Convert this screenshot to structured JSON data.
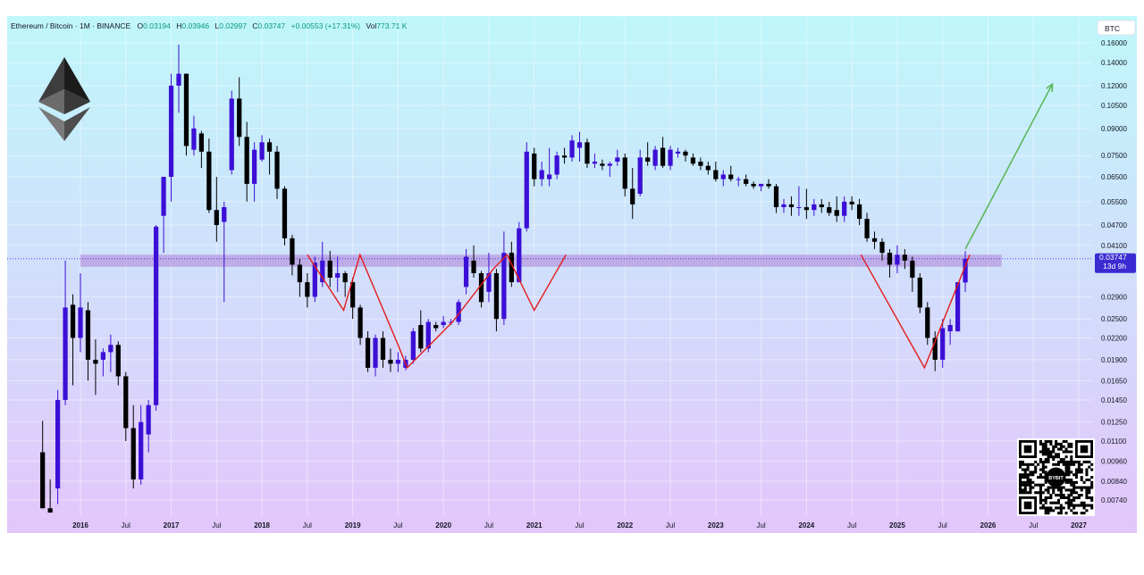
{
  "header": {
    "symbol": "Ethereum / Bitcoin · 1M · BINANCE",
    "open_label": "O",
    "open": "0.03194",
    "high_label": "H",
    "high": "0.03946",
    "low_label": "L",
    "low": "0.02997",
    "close_label": "C",
    "close": "0.03747",
    "change": "+0.00553 (+17.31%)",
    "vol_label": "Vol",
    "vol": "773.71 K"
  },
  "currency_label": "BTC",
  "price_badge": {
    "value": "0.03747",
    "countdown": "13d 9h"
  },
  "colors": {
    "bull": "#3c0fd6",
    "bear": "#000000",
    "pattern": "#e31b1b",
    "arrow": "#5cb85c",
    "zone": "#b79be0",
    "badge": "#3b2bd1",
    "bg_top": "#bff7fb",
    "bg_bottom": "#e3c6fb"
  },
  "icons": {
    "logo": "ethereum-logo-icon",
    "qr": "qr-code-icon",
    "qr_center": "BYBIT"
  },
  "chart_data": {
    "type": "candlestick",
    "yscale": "log",
    "y_ticks": [
      "0.16000",
      "0.14000",
      "0.12000",
      "0.10500",
      "0.09000",
      "0.07500",
      "0.06500",
      "0.05500",
      "0.04700",
      "0.04100",
      "0.02900",
      "0.02500",
      "0.02200",
      "0.01900",
      "0.01650",
      "0.01450",
      "0.01250",
      "0.01100",
      "0.00960",
      "0.00840",
      "0.00740"
    ],
    "x_ticks": [
      {
        "label": "2016",
        "t": 2016.0,
        "year": true
      },
      {
        "label": "Jul",
        "t": 2016.5,
        "year": false
      },
      {
        "label": "2017",
        "t": 2017.0,
        "year": true
      },
      {
        "label": "Jul",
        "t": 2017.5,
        "year": false
      },
      {
        "label": "2018",
        "t": 2018.0,
        "year": true
      },
      {
        "label": "Jul",
        "t": 2018.5,
        "year": false
      },
      {
        "label": "2019",
        "t": 2019.0,
        "year": true
      },
      {
        "label": "Jul",
        "t": 2019.5,
        "year": false
      },
      {
        "label": "2020",
        "t": 2020.0,
        "year": true
      },
      {
        "label": "Jul",
        "t": 2020.5,
        "year": false
      },
      {
        "label": "2021",
        "t": 2021.0,
        "year": true
      },
      {
        "label": "Jul",
        "t": 2021.5,
        "year": false
      },
      {
        "label": "2022",
        "t": 2022.0,
        "year": true
      },
      {
        "label": "Jul",
        "t": 2022.5,
        "year": false
      },
      {
        "label": "2023",
        "t": 2023.0,
        "year": true
      },
      {
        "label": "Jul",
        "t": 2023.5,
        "year": false
      },
      {
        "label": "2024",
        "t": 2024.0,
        "year": true
      },
      {
        "label": "Jul",
        "t": 2024.5,
        "year": false
      },
      {
        "label": "2025",
        "t": 2025.0,
        "year": true
      },
      {
        "label": "Jul",
        "t": 2025.5,
        "year": false
      },
      {
        "label": "2026",
        "t": 2026.0,
        "year": true
      },
      {
        "label": "Jul",
        "t": 2026.5,
        "year": false
      },
      {
        "label": "2027",
        "t": 2027.0,
        "year": true
      }
    ],
    "zone": {
      "low": 0.0355,
      "high": 0.0385
    },
    "current_price": 0.03747,
    "candles": [
      [
        0.0102,
        0.0126,
        0.007,
        0.007
      ],
      [
        0.007,
        0.0085,
        0.0068,
        0.0068
      ],
      [
        0.008,
        0.0155,
        0.0072,
        0.0145
      ],
      [
        0.0145,
        0.037,
        0.014,
        0.027
      ],
      [
        0.0275,
        0.0295,
        0.016,
        0.022
      ],
      [
        0.022,
        0.034,
        0.02,
        0.027
      ],
      [
        0.0265,
        0.028,
        0.0165,
        0.019
      ],
      [
        0.019,
        0.0218,
        0.015,
        0.0185
      ],
      [
        0.019,
        0.0205,
        0.017,
        0.02
      ],
      [
        0.02,
        0.0225,
        0.0175,
        0.021
      ],
      [
        0.021,
        0.0215,
        0.016,
        0.017
      ],
      [
        0.017,
        0.0175,
        0.011,
        0.012
      ],
      [
        0.012,
        0.014,
        0.008,
        0.0085
      ],
      [
        0.0085,
        0.014,
        0.0082,
        0.0125
      ],
      [
        0.0115,
        0.0145,
        0.0102,
        0.014
      ],
      [
        0.014,
        0.047,
        0.0135,
        0.0465
      ],
      [
        0.05,
        0.065,
        0.039,
        0.065
      ],
      [
        0.065,
        0.13,
        0.055,
        0.12
      ],
      [
        0.12,
        0.158,
        0.1,
        0.13
      ],
      [
        0.13,
        0.13,
        0.075,
        0.08
      ],
      [
        0.078,
        0.098,
        0.075,
        0.09
      ],
      [
        0.087,
        0.0885,
        0.069,
        0.077
      ],
      [
        0.077,
        0.084,
        0.051,
        0.052
      ],
      [
        0.052,
        0.065,
        0.042,
        0.047
      ],
      [
        0.048,
        0.055,
        0.028,
        0.053
      ],
      [
        0.068,
        0.116,
        0.066,
        0.11
      ],
      [
        0.11,
        0.127,
        0.08,
        0.085
      ],
      [
        0.085,
        0.094,
        0.055,
        0.062
      ],
      [
        0.062,
        0.082,
        0.055,
        0.078
      ],
      [
        0.073,
        0.086,
        0.072,
        0.082
      ],
      [
        0.082,
        0.084,
        0.066,
        0.077
      ],
      [
        0.077,
        0.08,
        0.056,
        0.06
      ],
      [
        0.06,
        0.061,
        0.041,
        0.043
      ],
      [
        0.043,
        0.044,
        0.0335,
        0.036
      ],
      [
        0.036,
        0.0375,
        0.029,
        0.032
      ],
      [
        0.032,
        0.034,
        0.027,
        0.029
      ],
      [
        0.029,
        0.038,
        0.028,
        0.0365
      ],
      [
        0.032,
        0.042,
        0.031,
        0.037
      ],
      [
        0.037,
        0.0395,
        0.031,
        0.033
      ],
      [
        0.033,
        0.038,
        0.03,
        0.034
      ],
      [
        0.034,
        0.0345,
        0.029,
        0.032
      ],
      [
        0.032,
        0.033,
        0.025,
        0.027
      ],
      [
        0.027,
        0.0275,
        0.021,
        0.022
      ],
      [
        0.022,
        0.023,
        0.0175,
        0.018
      ],
      [
        0.018,
        0.0225,
        0.017,
        0.022
      ],
      [
        0.022,
        0.023,
        0.018,
        0.019
      ],
      [
        0.019,
        0.0205,
        0.0175,
        0.0185
      ],
      [
        0.0185,
        0.02,
        0.0175,
        0.019
      ],
      [
        0.018,
        0.0195,
        0.0177,
        0.019
      ],
      [
        0.019,
        0.0235,
        0.0185,
        0.023
      ],
      [
        0.024,
        0.0265,
        0.02,
        0.0205
      ],
      [
        0.0205,
        0.025,
        0.02,
        0.0245
      ],
      [
        0.024,
        0.0245,
        0.023,
        0.0235
      ],
      [
        0.024,
        0.0255,
        0.0235,
        0.0245
      ],
      [
        0.0245,
        0.025,
        0.024,
        0.0245
      ],
      [
        0.0245,
        0.0285,
        0.024,
        0.028
      ],
      [
        0.031,
        0.04,
        0.0295,
        0.038
      ],
      [
        0.037,
        0.041,
        0.033,
        0.034
      ],
      [
        0.034,
        0.0345,
        0.027,
        0.028
      ],
      [
        0.03,
        0.039,
        0.028,
        0.034
      ],
      [
        0.034,
        0.035,
        0.023,
        0.025
      ],
      [
        0.025,
        0.045,
        0.024,
        0.039
      ],
      [
        0.039,
        0.042,
        0.031,
        0.032
      ],
      [
        0.032,
        0.048,
        0.032,
        0.046
      ],
      [
        0.046,
        0.082,
        0.045,
        0.077
      ],
      [
        0.076,
        0.079,
        0.061,
        0.064
      ],
      [
        0.064,
        0.072,
        0.061,
        0.068
      ],
      [
        0.064,
        0.079,
        0.061,
        0.066
      ],
      [
        0.066,
        0.077,
        0.064,
        0.075
      ],
      [
        0.075,
        0.079,
        0.071,
        0.074
      ],
      [
        0.074,
        0.086,
        0.072,
        0.083
      ],
      [
        0.079,
        0.088,
        0.072,
        0.082
      ],
      [
        0.082,
        0.084,
        0.069,
        0.071
      ],
      [
        0.071,
        0.076,
        0.069,
        0.072
      ],
      [
        0.071,
        0.073,
        0.068,
        0.07
      ],
      [
        0.07,
        0.072,
        0.065,
        0.071
      ],
      [
        0.072,
        0.078,
        0.07,
        0.074
      ],
      [
        0.074,
        0.076,
        0.057,
        0.06
      ],
      [
        0.06,
        0.069,
        0.049,
        0.054
      ],
      [
        0.058,
        0.078,
        0.057,
        0.074
      ],
      [
        0.074,
        0.082,
        0.07,
        0.072
      ],
      [
        0.07,
        0.08,
        0.068,
        0.078
      ],
      [
        0.079,
        0.085,
        0.069,
        0.07
      ],
      [
        0.07,
        0.08,
        0.068,
        0.078
      ],
      [
        0.076,
        0.079,
        0.074,
        0.077
      ],
      [
        0.077,
        0.078,
        0.072,
        0.075
      ],
      [
        0.074,
        0.076,
        0.07,
        0.071
      ],
      [
        0.072,
        0.074,
        0.068,
        0.07
      ],
      [
        0.07,
        0.072,
        0.066,
        0.068
      ],
      [
        0.068,
        0.072,
        0.063,
        0.064
      ],
      [
        0.064,
        0.068,
        0.061,
        0.066
      ],
      [
        0.066,
        0.07,
        0.063,
        0.064
      ],
      [
        0.064,
        0.065,
        0.061,
        0.064
      ],
      [
        0.064,
        0.066,
        0.061,
        0.062
      ],
      [
        0.062,
        0.063,
        0.06,
        0.061
      ],
      [
        0.061,
        0.062,
        0.059,
        0.062
      ],
      [
        0.062,
        0.064,
        0.06,
        0.061
      ],
      [
        0.061,
        0.062,
        0.051,
        0.053
      ],
      [
        0.053,
        0.056,
        0.051,
        0.054
      ],
      [
        0.054,
        0.057,
        0.05,
        0.053
      ],
      [
        0.053,
        0.061,
        0.05,
        0.053
      ],
      [
        0.053,
        0.06,
        0.049,
        0.052
      ],
      [
        0.052,
        0.056,
        0.05,
        0.054
      ],
      [
        0.054,
        0.056,
        0.051,
        0.053
      ],
      [
        0.053,
        0.055,
        0.05,
        0.051
      ],
      [
        0.052,
        0.057,
        0.048,
        0.05
      ],
      [
        0.05,
        0.057,
        0.048,
        0.055
      ],
      [
        0.055,
        0.057,
        0.052,
        0.054
      ],
      [
        0.054,
        0.056,
        0.047,
        0.049
      ],
      [
        0.049,
        0.051,
        0.042,
        0.043
      ],
      [
        0.043,
        0.045,
        0.04,
        0.042
      ],
      [
        0.042,
        0.043,
        0.037,
        0.039
      ],
      [
        0.039,
        0.04,
        0.033,
        0.036
      ],
      [
        0.036,
        0.041,
        0.034,
        0.0385
      ],
      [
        0.0385,
        0.04,
        0.035,
        0.037
      ],
      [
        0.037,
        0.038,
        0.03,
        0.033
      ],
      [
        0.033,
        0.034,
        0.026,
        0.027
      ],
      [
        0.027,
        0.028,
        0.021,
        0.022
      ],
      [
        0.022,
        0.023,
        0.0176,
        0.019
      ],
      [
        0.019,
        0.025,
        0.018,
        0.0235
      ],
      [
        0.023,
        0.025,
        0.021,
        0.024
      ],
      [
        0.023,
        0.032,
        0.023,
        0.032
      ],
      [
        0.03194,
        0.03946,
        0.02997,
        0.03747
      ]
    ]
  }
}
